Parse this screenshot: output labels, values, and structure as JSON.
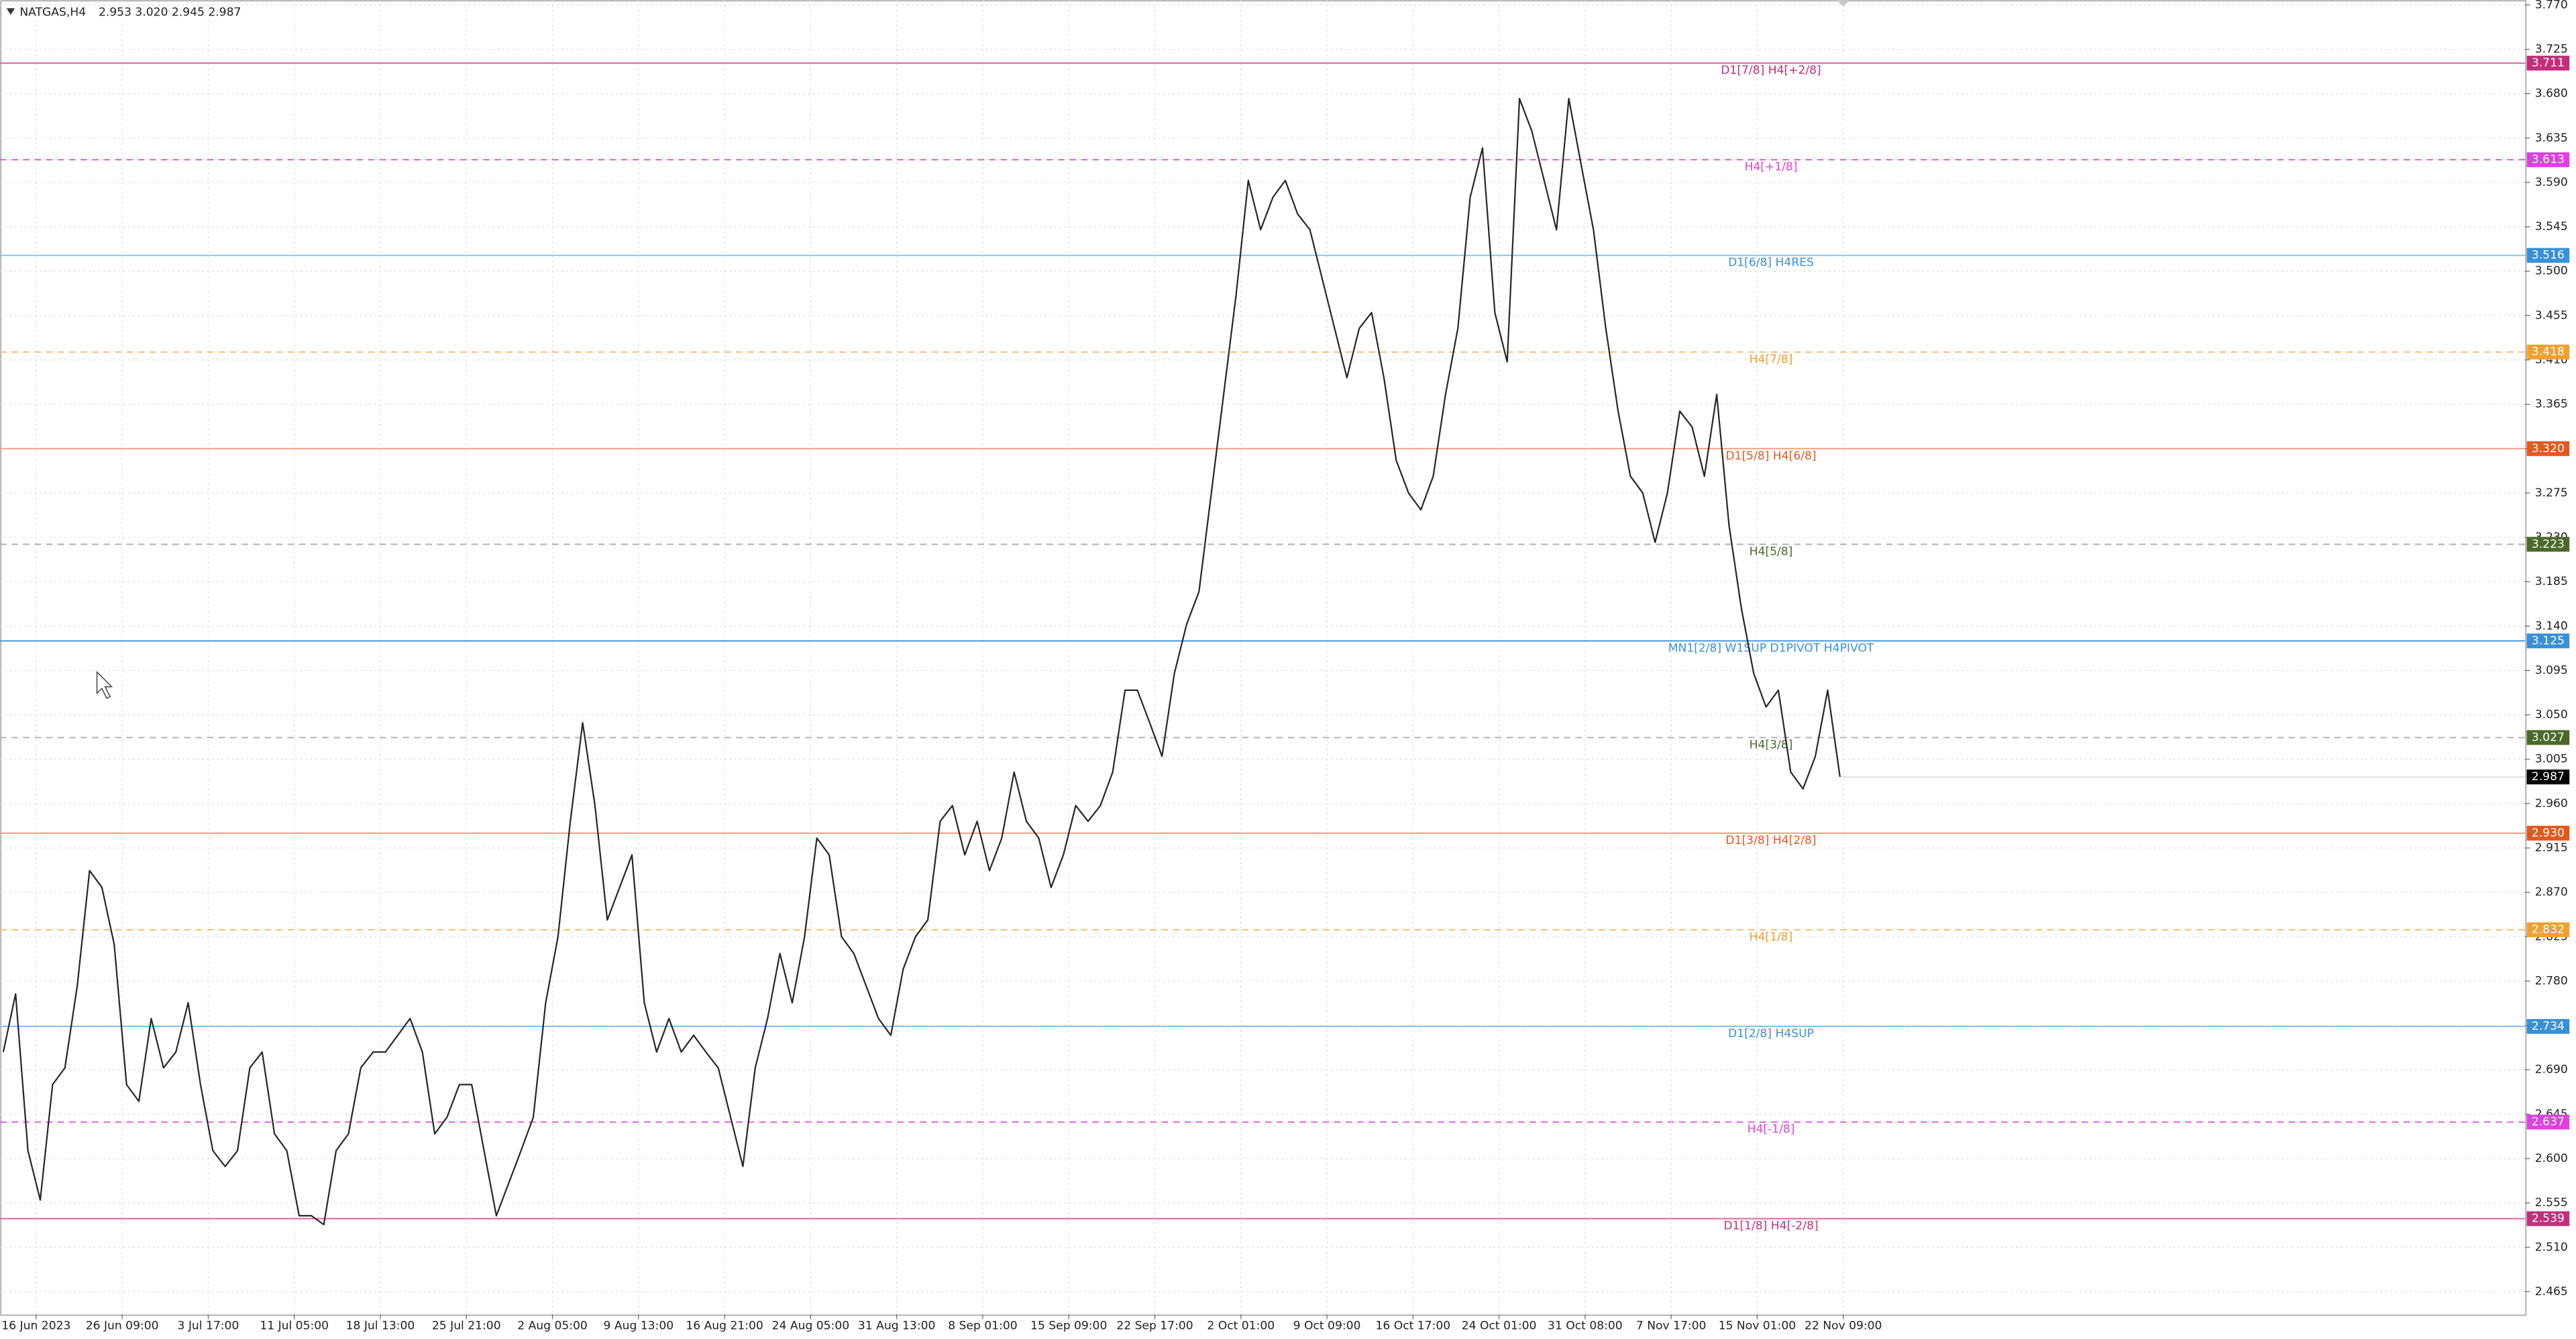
{
  "chart_data": {
    "type": "line",
    "symbol": "NATGAS,H4",
    "ohlc": "2.953 3.020 2.945 2.987",
    "color": "#262626",
    "grid": true,
    "ylim": [
      2.442,
      3.775
    ],
    "yticks": [
      {
        "value": 3.77,
        "label": "3.770"
      },
      {
        "value": 3.725,
        "label": "3.725"
      },
      {
        "value": 3.68,
        "label": "3.680"
      },
      {
        "value": 3.635,
        "label": "3.635"
      },
      {
        "value": 3.59,
        "label": "3.590"
      },
      {
        "value": 3.545,
        "label": "3.545"
      },
      {
        "value": 3.5,
        "label": "3.500"
      },
      {
        "value": 3.455,
        "label": "3.455"
      },
      {
        "value": 3.41,
        "label": "3.410"
      },
      {
        "value": 3.365,
        "label": "3.365"
      },
      {
        "value": 3.32,
        "label": "3.320"
      },
      {
        "value": 3.275,
        "label": "3.275"
      },
      {
        "value": 3.23,
        "label": "3.230"
      },
      {
        "value": 3.185,
        "label": "3.185"
      },
      {
        "value": 3.14,
        "label": "3.140"
      },
      {
        "value": 3.095,
        "label": "3.095"
      },
      {
        "value": 3.05,
        "label": "3.050"
      },
      {
        "value": 3.005,
        "label": "3.005"
      },
      {
        "value": 2.96,
        "label": "2.960"
      },
      {
        "value": 2.915,
        "label": "2.915"
      },
      {
        "value": 2.87,
        "label": "2.870"
      },
      {
        "value": 2.825,
        "label": "2.825"
      },
      {
        "value": 2.78,
        "label": "2.780"
      },
      {
        "value": 2.735,
        "label": "2.735"
      },
      {
        "value": 2.69,
        "label": "2.690"
      },
      {
        "value": 2.645,
        "label": "2.645"
      },
      {
        "value": 2.6,
        "label": "2.600"
      },
      {
        "value": 2.555,
        "label": "2.555"
      },
      {
        "value": 2.51,
        "label": "2.510"
      },
      {
        "value": 2.465,
        "label": "2.465"
      }
    ],
    "x_labels": [
      "16 Jun 2023",
      "26 Jun 09:00",
      "3 Jul 17:00",
      "11 Jul 05:00",
      "18 Jul 13:00",
      "25 Jul 21:00",
      "2 Aug 05:00",
      "9 Aug 13:00",
      "16 Aug 21:00",
      "24 Aug 05:00",
      "31 Aug 13:00",
      "8 Sep 01:00",
      "15 Sep 09:00",
      "22 Sep 17:00",
      "2 Oct 01:00",
      "9 Oct 09:00",
      "16 Oct 17:00",
      "24 Oct 01:00",
      "31 Oct 08:00",
      "7 Nov 17:00",
      "15 Nov 01:00",
      "22 Nov 09:00"
    ],
    "values": [
      2.708,
      2.767,
      2.608,
      2.558,
      2.675,
      2.692,
      2.775,
      2.892,
      2.875,
      2.817,
      2.675,
      2.658,
      2.742,
      2.692,
      2.708,
      2.758,
      2.675,
      2.608,
      2.592,
      2.608,
      2.692,
      2.708,
      2.625,
      2.608,
      2.542,
      2.542,
      2.533,
      2.608,
      2.625,
      2.692,
      2.708,
      2.708,
      2.725,
      2.742,
      2.708,
      2.625,
      2.642,
      2.675,
      2.675,
      2.608,
      2.542,
      2.575,
      2.608,
      2.642,
      2.758,
      2.825,
      2.942,
      3.042,
      2.958,
      2.842,
      2.875,
      2.908,
      2.758,
      2.708,
      2.742,
      2.708,
      2.725,
      2.708,
      2.692,
      2.642,
      2.592,
      2.692,
      2.742,
      2.808,
      2.758,
      2.825,
      2.925,
      2.908,
      2.825,
      2.808,
      2.775,
      2.742,
      2.725,
      2.792,
      2.825,
      2.842,
      2.942,
      2.958,
      2.908,
      2.942,
      2.892,
      2.925,
      2.992,
      2.942,
      2.925,
      2.875,
      2.908,
      2.958,
      2.942,
      2.958,
      2.992,
      3.075,
      3.075,
      3.042,
      3.008,
      3.092,
      3.142,
      3.175,
      3.275,
      3.375,
      3.475,
      3.592,
      3.542,
      3.575,
      3.592,
      3.558,
      3.542,
      3.492,
      3.442,
      3.392,
      3.442,
      3.458,
      3.392,
      3.308,
      3.275,
      3.258,
      3.292,
      3.375,
      3.442,
      3.575,
      3.625,
      3.458,
      3.408,
      3.675,
      3.642,
      3.592,
      3.542,
      3.675,
      3.608,
      3.542,
      3.442,
      3.358,
      3.292,
      3.275,
      3.225,
      3.275,
      3.358,
      3.342,
      3.292,
      3.375,
      3.242,
      3.158,
      3.092,
      3.058,
      3.075,
      2.992,
      2.975,
      3.008,
      3.075,
      2.987
    ],
    "last_price": 2.987,
    "levels": [
      {
        "name": "D1[7/8] H4[+2/8]",
        "value": 3.711,
        "value_label": "3.711",
        "color": "#e060a0",
        "label_color": "#c0307a",
        "dashed": false
      },
      {
        "name": "H4[+1/8]",
        "value": 3.613,
        "value_label": "3.613",
        "color": "#e060e0",
        "label_color": "#e040e0",
        "dashed": true
      },
      {
        "name": "D1[6/8] H4RES",
        "value": 3.516,
        "value_label": "3.516",
        "color": "#80c0ec",
        "label_color": "#3a90d8",
        "dashed": false
      },
      {
        "name": "H4[7/8]",
        "value": 3.418,
        "value_label": "3.418",
        "color": "#f5c070",
        "label_color": "#f0a030",
        "dashed": true
      },
      {
        "name": "D1[5/8] H4[6/8]",
        "value": 3.32,
        "value_label": "3.320",
        "color": "#f0a080",
        "label_color": "#e05a20",
        "dashed": false
      },
      {
        "name": "H4[5/8]",
        "value": 3.223,
        "value_label": "3.223",
        "color": "#b0b0b0",
        "label_color": "#4a6a2a",
        "dashed": true
      },
      {
        "name": "MN1[2/8] W1SUP D1PIVOT H4PIVOT",
        "value": 3.125,
        "value_label": "3.125",
        "color": "#4a98d8",
        "label_color": "#3a90d8",
        "dashed": false
      },
      {
        "name": "H4[3/8]",
        "value": 3.027,
        "value_label": "3.027",
        "color": "#b0b0b0",
        "label_color": "#4a6a2a",
        "dashed": true
      },
      {
        "name": "D1[3/8] H4[2/8]",
        "value": 2.93,
        "value_label": "2.930",
        "color": "#f0a080",
        "label_color": "#e05a20",
        "dashed": false
      },
      {
        "name": "H4[1/8]",
        "value": 2.832,
        "value_label": "2.832",
        "color": "#f5c070",
        "label_color": "#f0a030",
        "dashed": true
      },
      {
        "name": "D1[2/8] H4SUP",
        "value": 2.734,
        "value_label": "2.734",
        "color": "#80c0ec",
        "label_color": "#3a90d8",
        "dashed": false
      },
      {
        "name": "H4[-1/8]",
        "value": 2.637,
        "value_label": "2.637",
        "color": "#e060e0",
        "label_color": "#e040e0",
        "dashed": true
      },
      {
        "name": "D1[1/8] H4[-2/8]",
        "value": 2.539,
        "value_label": "2.539",
        "color": "#e060a0",
        "label_color": "#c0307a",
        "dashed": false
      }
    ]
  }
}
